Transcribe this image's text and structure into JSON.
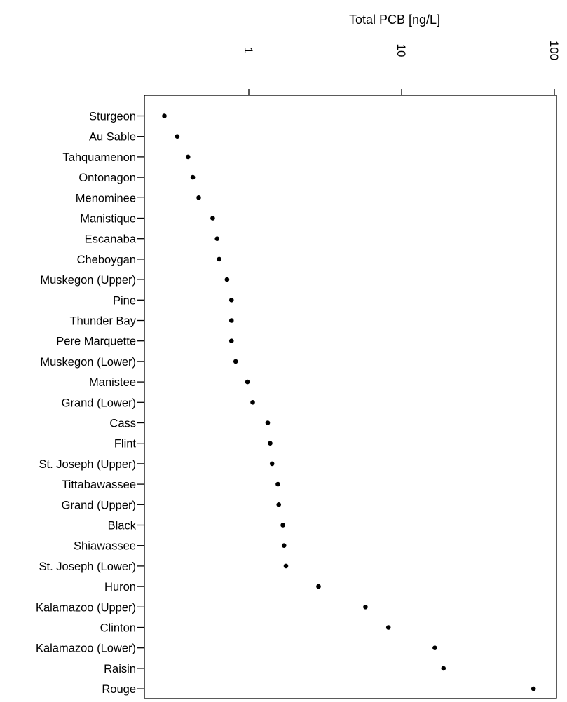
{
  "chart_data": {
    "type": "scatter",
    "xlabel": "Total PCB [ng/L]",
    "x_scale": "log",
    "xlim": [
      0.2,
      100
    ],
    "x_ticks": [
      {
        "value": 1,
        "label": "1"
      },
      {
        "value": 10,
        "label": "10"
      },
      {
        "value": 100,
        "label": "100"
      }
    ],
    "grid": false,
    "categories": [
      "Sturgeon",
      "Au Sable",
      "Tahquamenon",
      "Ontonagon",
      "Menominee",
      "Manistique",
      "Escanaba",
      "Cheboygan",
      "Muskegon (Upper)",
      "Pine",
      "Thunder Bay",
      "Pere Marquette",
      "Muskegon (Lower)",
      "Manistee",
      "Grand (Lower)",
      "Cass",
      "Flint",
      "St. Joseph (Upper)",
      "Tittabawassee",
      "Grand (Upper)",
      "Black",
      "Shiawassee",
      "St. Joseph (Lower)",
      "Huron",
      "Kalamazoo (Upper)",
      "Clinton",
      "Kalamazoo (Lower)",
      "Raisin",
      "Rouge"
    ],
    "values": [
      0.28,
      0.34,
      0.4,
      0.43,
      0.47,
      0.58,
      0.62,
      0.64,
      0.72,
      0.77,
      0.77,
      0.77,
      0.82,
      0.98,
      1.06,
      1.33,
      1.38,
      1.42,
      1.55,
      1.57,
      1.67,
      1.7,
      1.75,
      2.86,
      5.8,
      8.2,
      16.5,
      18.8,
      73
    ],
    "marker_color": "#000000"
  }
}
